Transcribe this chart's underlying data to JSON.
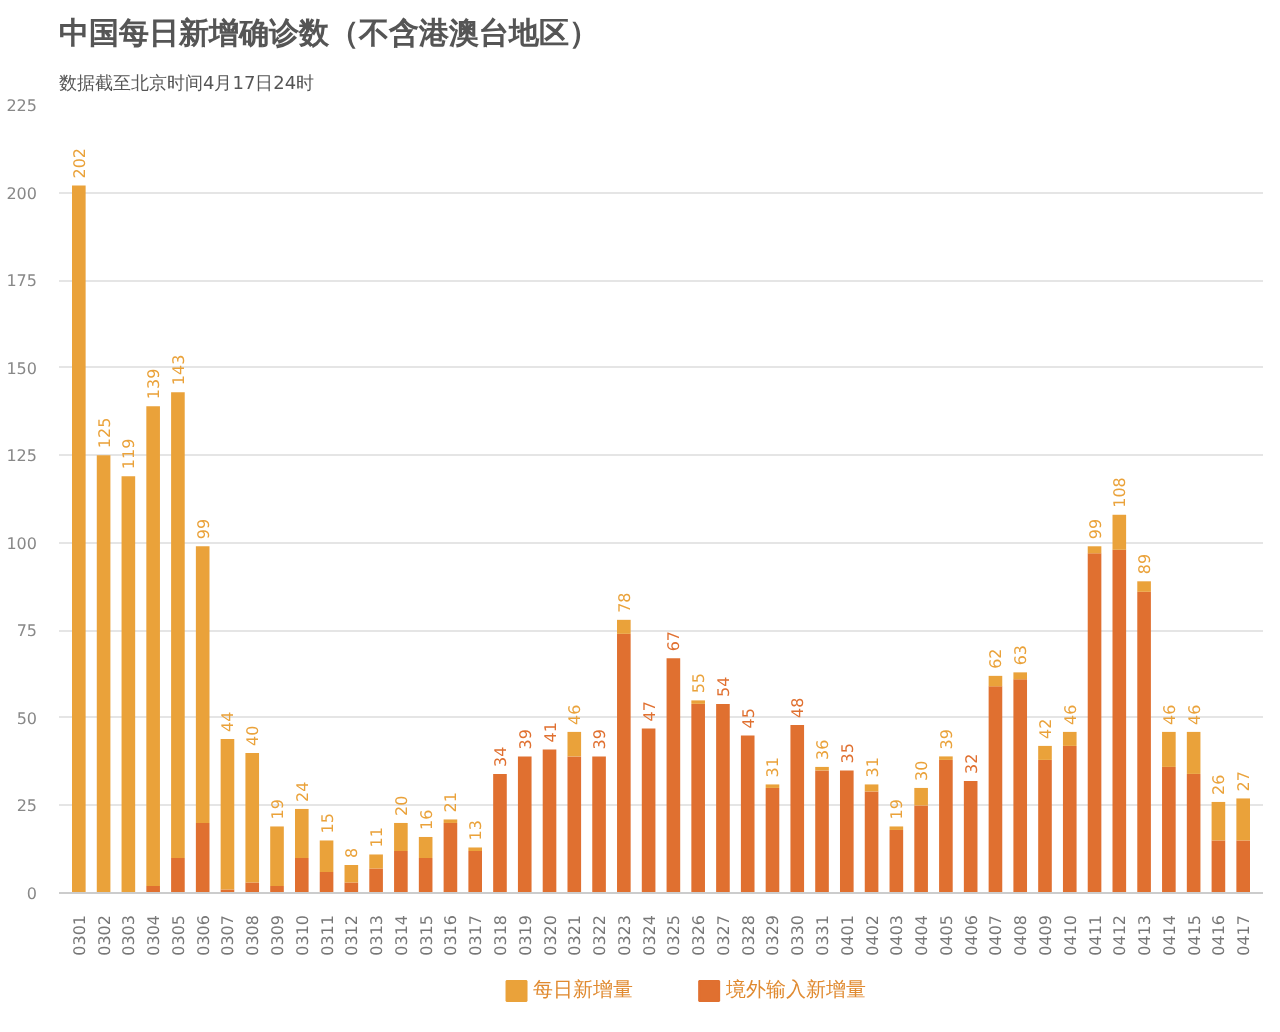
{
  "chart_data": {
    "type": "bar",
    "stacked": true,
    "title": "中国每日新增确诊数（不含港澳台地区）",
    "subtitle": "数据截至北京时间4月17日24时",
    "categories": [
      "0301",
      "0302",
      "0303",
      "0304",
      "0305",
      "0306",
      "0307",
      "0308",
      "0309",
      "0310",
      "0311",
      "0312",
      "0313",
      "0314",
      "0315",
      "0316",
      "0317",
      "0318",
      "0319",
      "0320",
      "0321",
      "0322",
      "0323",
      "0324",
      "0325",
      "0326",
      "0327",
      "0328",
      "0329",
      "0330",
      "0331",
      "0401",
      "0402",
      "0403",
      "0404",
      "0405",
      "0406",
      "0407",
      "0408",
      "0409",
      "0410",
      "0411",
      "0412",
      "0413",
      "0414",
      "0415",
      "0416",
      "0417"
    ],
    "series": [
      {
        "name": "境外输入新增量",
        "color": "#e07030",
        "values": [
          0,
          0,
          0,
          2,
          10,
          20,
          1,
          3,
          2,
          10,
          6,
          3,
          7,
          12,
          10,
          20,
          12,
          34,
          39,
          41,
          39,
          39,
          74,
          47,
          67,
          54,
          54,
          45,
          30,
          48,
          35,
          35,
          29,
          18,
          25,
          38,
          32,
          59,
          61,
          38,
          42,
          97,
          98,
          86,
          36,
          34,
          15,
          15
        ]
      },
      {
        "name": "每日新增量",
        "color": "#eaa23a",
        "values": [
          202,
          125,
          119,
          137,
          133,
          79,
          43,
          37,
          17,
          14,
          9,
          5,
          4,
          8,
          6,
          1,
          1,
          0,
          0,
          0,
          7,
          0,
          4,
          0,
          0,
          1,
          0,
          0,
          1,
          0,
          1,
          0,
          2,
          1,
          5,
          1,
          0,
          3,
          2,
          4,
          4,
          2,
          10,
          3,
          10,
          12,
          11,
          12
        ]
      }
    ],
    "totals": [
      "202",
      "125",
      "119",
      "139",
      "143",
      "99",
      "44",
      "40",
      "19",
      "24",
      "15",
      "8",
      "11",
      "20",
      "16",
      "21",
      "13",
      "34",
      "39",
      "41",
      "46",
      "39",
      "78",
      "47",
      "67",
      "55",
      "54",
      "45",
      "31",
      "48",
      "36",
      "35",
      "31",
      "19",
      "30",
      "39",
      "32",
      "62",
      "63",
      "42",
      "46",
      "99",
      "108",
      "89",
      "46",
      "46",
      "26",
      "27"
    ],
    "ylim": [
      0,
      225
    ],
    "yticks": [
      0,
      25,
      50,
      75,
      100,
      125,
      150,
      175,
      200,
      225
    ],
    "grid": "y",
    "legend": "bottom"
  }
}
